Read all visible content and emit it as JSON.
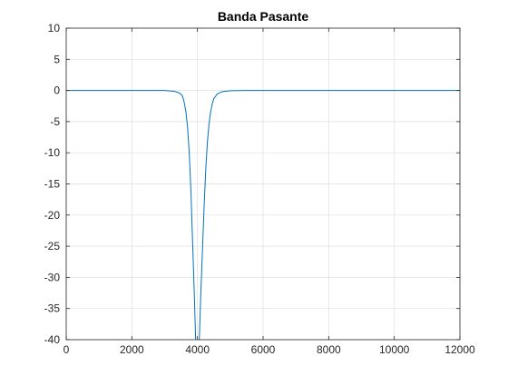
{
  "figure": {
    "background": "#ffffff"
  },
  "chart_data": {
    "type": "line",
    "title": "Banda Pasante",
    "xlabel": "",
    "ylabel": "",
    "xlim": [
      0,
      12000
    ],
    "ylim": [
      -40,
      10
    ],
    "xticks": [
      0,
      2000,
      4000,
      6000,
      8000,
      10000,
      12000
    ],
    "yticks": [
      10,
      5,
      0,
      -5,
      -10,
      -15,
      -20,
      -25,
      -30,
      -35,
      -40
    ],
    "xtick_labels": [
      "0",
      "2000",
      "4000",
      "6000",
      "8000",
      "10000",
      "12000"
    ],
    "ytick_labels": [
      "10",
      "5",
      "0",
      "-5",
      "-10",
      "-15",
      "-20",
      "-25",
      "-30",
      "-35",
      "-40"
    ],
    "grid": true,
    "line_color": "#0072bd",
    "series": [
      {
        "x": [
          0,
          1000,
          2000,
          2800,
          3000,
          3200,
          3300,
          3400,
          3500,
          3550,
          3600,
          3650,
          3700,
          3750,
          3800,
          3850,
          3900,
          3950,
          4050,
          4100,
          4150,
          4200,
          4250,
          4300,
          4350,
          4400,
          4450,
          4500,
          4600,
          4700,
          4800,
          5000,
          5500,
          6000,
          8000,
          10000,
          12000
        ],
        "y": [
          0,
          0,
          0,
          0,
          0,
          -0.1,
          -0.15,
          -0.3,
          -0.6,
          -1,
          -2,
          -3.5,
          -6,
          -10,
          -16,
          -24,
          -32,
          -41,
          -41,
          -33,
          -26,
          -19,
          -13,
          -8.5,
          -5.5,
          -3.5,
          -2.2,
          -1.3,
          -0.6,
          -0.3,
          -0.15,
          -0.05,
          0,
          0,
          0,
          0,
          0
        ]
      }
    ]
  }
}
